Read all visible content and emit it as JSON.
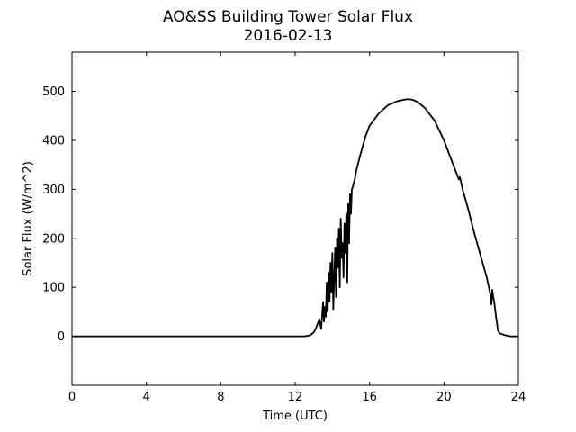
{
  "chart_data": {
    "type": "line",
    "title": "AO&SS Building Tower Solar Flux",
    "subtitle": "2016-02-13",
    "xlabel": "Time (UTC)",
    "ylabel": "Solar Flux (W/m^2)",
    "xlim": [
      0,
      24
    ],
    "ylim": [
      -100,
      580
    ],
    "xticks": [
      0,
      4,
      8,
      12,
      16,
      20,
      24
    ],
    "yticks": [
      0,
      100,
      200,
      300,
      400,
      500
    ],
    "grid": false,
    "line_color": "#000000",
    "series": [
      {
        "x": [
          0,
          6,
          12.5,
          12.8,
          13.0,
          13.1,
          13.2,
          13.3,
          13.4,
          13.5,
          13.55,
          13.6,
          13.65,
          13.7,
          13.75,
          13.8,
          13.85,
          13.9,
          13.95,
          14.0,
          14.05,
          14.1,
          14.15,
          14.2,
          14.25,
          14.3,
          14.35,
          14.4,
          14.45,
          14.5,
          14.55,
          14.6,
          14.65,
          14.7,
          14.75,
          14.8,
          14.85,
          14.9,
          14.95,
          15.0,
          15.05,
          15.1,
          15.2,
          15.3,
          15.5,
          15.8,
          16.0,
          16.5,
          17.0,
          17.5,
          18.0,
          18.3,
          18.6,
          19.0,
          19.5,
          20.0,
          20.5,
          20.8,
          20.85,
          20.9,
          21.0,
          21.3,
          21.6,
          22.0,
          22.3,
          22.5,
          22.55,
          22.6,
          22.65,
          22.7,
          22.8,
          22.9,
          23.0,
          23.3,
          23.6,
          24.0
        ],
        "y": [
          0,
          0,
          0,
          2,
          8,
          15,
          25,
          35,
          15,
          70,
          30,
          60,
          40,
          110,
          50,
          130,
          70,
          150,
          90,
          170,
          55,
          120,
          180,
          80,
          200,
          140,
          220,
          100,
          240,
          160,
          190,
          120,
          230,
          170,
          250,
          110,
          270,
          190,
          290,
          250,
          300,
          305,
          320,
          340,
          370,
          410,
          430,
          455,
          472,
          480,
          484,
          483,
          478,
          465,
          440,
          400,
          350,
          320,
          325,
          318,
          300,
          260,
          215,
          160,
          120,
          85,
          65,
          95,
          80,
          70,
          40,
          12,
          6,
          2,
          0,
          0
        ]
      }
    ]
  }
}
